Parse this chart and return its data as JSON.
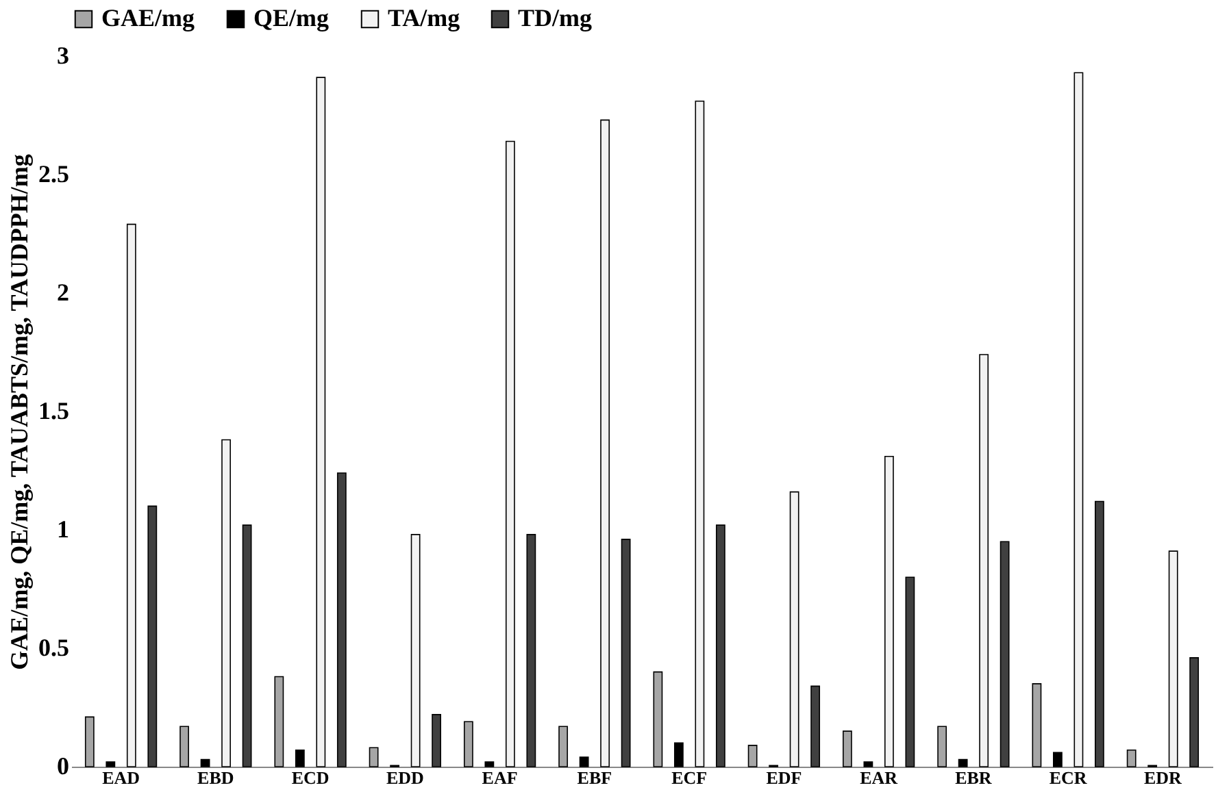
{
  "chart_data": {
    "type": "bar",
    "ylabel": "GAE/mg, QE/mg, TAUABTS/mg, TAUDPPH/mg",
    "categories": [
      "EAD",
      "EBD",
      "ECD",
      "EDD",
      "EAF",
      "EBF",
      "ECF",
      "EDF",
      "EAR",
      "EBR",
      "ECR",
      "EDR"
    ],
    "series": [
      {
        "name": "GAE/mg",
        "color": "#a6a6a6",
        "values": [
          0.21,
          0.17,
          0.38,
          0.08,
          0.19,
          0.17,
          0.4,
          0.09,
          0.15,
          0.17,
          0.35,
          0.07
        ]
      },
      {
        "name": "QE/mg",
        "color": "#000000",
        "values": [
          0.02,
          0.03,
          0.07,
          0.005,
          0.02,
          0.04,
          0.1,
          0.005,
          0.02,
          0.03,
          0.06,
          0.005
        ]
      },
      {
        "name": "TA/mg",
        "color": "#f2f2f2",
        "values": [
          2.29,
          1.38,
          2.91,
          0.98,
          2.64,
          2.73,
          2.81,
          1.16,
          1.31,
          1.74,
          2.93,
          0.91
        ]
      },
      {
        "name": "TD/mg",
        "color": "#404040",
        "values": [
          1.1,
          1.02,
          1.24,
          0.22,
          0.98,
          0.96,
          1.02,
          0.34,
          0.8,
          0.95,
          1.12,
          0.46
        ]
      }
    ],
    "ylim": [
      0,
      3
    ],
    "yticks": [
      0,
      0.5,
      1,
      1.5,
      2,
      2.5,
      3
    ],
    "grid": false,
    "legend": "top"
  }
}
